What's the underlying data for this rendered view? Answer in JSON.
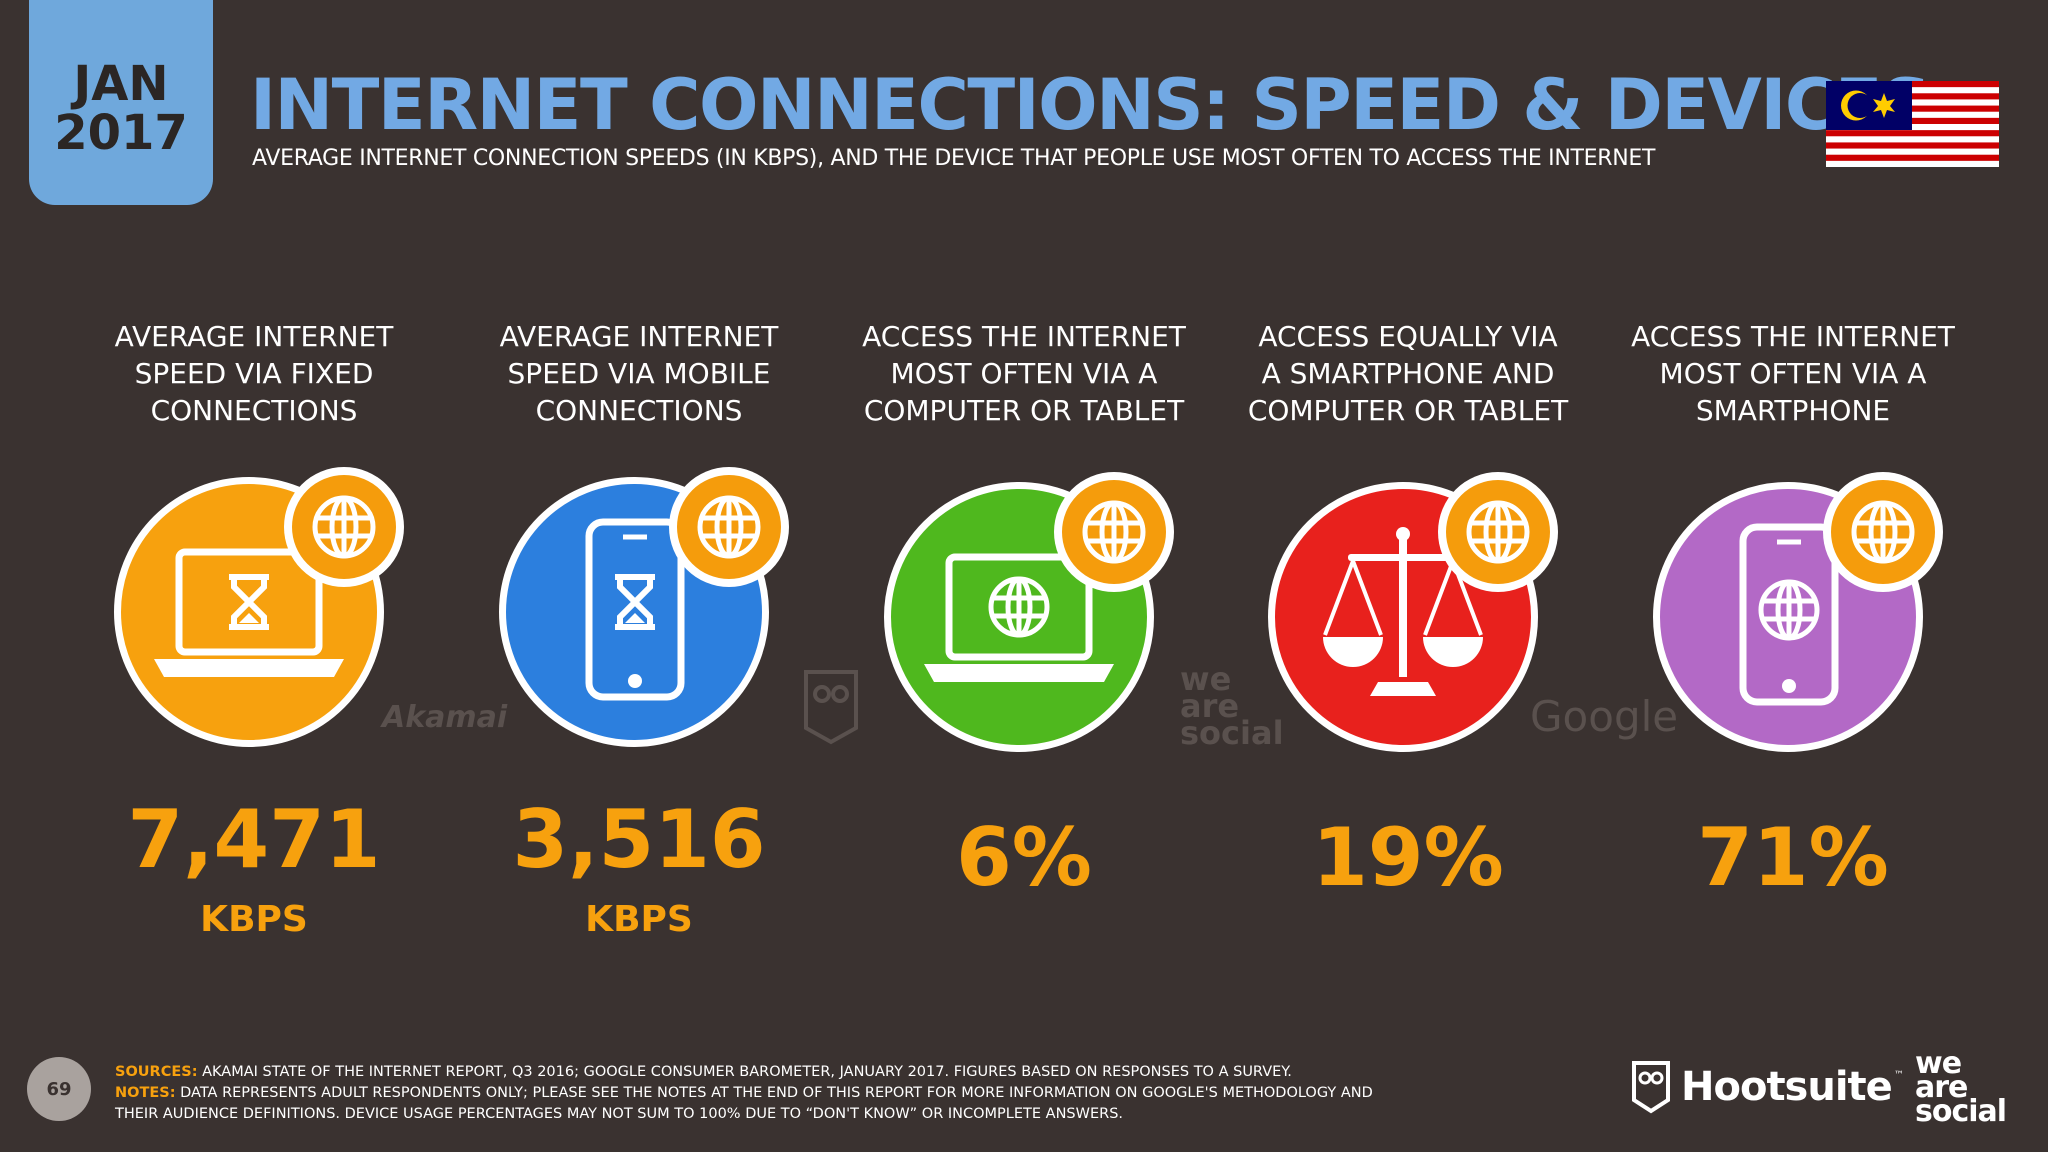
{
  "header": {
    "month": "JAN",
    "year": "2017",
    "title": "INTERNET CONNECTIONS: SPEED & DEVICES",
    "subtitle": "AVERAGE INTERNET CONNECTION SPEEDS (IN KBPS), AND THE DEVICE THAT PEOPLE USE MOST OFTEN TO ACCESS THE INTERNET"
  },
  "flag": {
    "icon": "malaysia-flag-icon"
  },
  "stats": [
    {
      "label": "AVERAGE INTERNET\nSPEED VIA FIXED\nCONNECTIONS",
      "value": "7,471",
      "unit": "KBPS",
      "color": "#f7a10e",
      "icon": "laptop-hourglass-icon"
    },
    {
      "label": "AVERAGE INTERNET\nSPEED VIA MOBILE\nCONNECTIONS",
      "value": "3,516",
      "unit": "KBPS",
      "color": "#2c7fde",
      "icon": "smartphone-hourglass-icon"
    },
    {
      "label": "ACCESS THE INTERNET\nMOST OFTEN VIA A\nCOMPUTER OR TABLET",
      "value": "6%",
      "unit": "",
      "color": "#4fb81e",
      "icon": "laptop-globe-icon"
    },
    {
      "label": "ACCESS EQUALLY VIA\nA SMARTPHONE AND\nCOMPUTER OR TABLET",
      "value": "19%",
      "unit": "",
      "color": "#e8211d",
      "icon": "scales-icon"
    },
    {
      "label": "ACCESS THE INTERNET\nMOST OFTEN VIA A\nSMARTPHONE",
      "value": "71%",
      "unit": "",
      "color": "#b369c6",
      "icon": "smartphone-globe-icon"
    }
  ],
  "watermarks": {
    "akamai": "Akamai",
    "we": "we",
    "are": "are",
    "social": "social",
    "google": "Google"
  },
  "footer": {
    "page": "69",
    "sources_key": "SOURCES:",
    "sources": " AKAMAI STATE OF THE INTERNET REPORT, Q3 2016; GOOGLE CONSUMER BAROMETER, JANUARY 2017. FIGURES BASED ON RESPONSES TO A SURVEY.",
    "notes_key": "NOTES:",
    "notes": " DATA REPRESENTS ADULT RESPONDENTS ONLY; PLEASE SEE THE NOTES AT THE END OF THIS REPORT FOR MORE INFORMATION ON GOOGLE'S METHODOLOGY AND THEIR AUDIENCE DEFINITIONS. DEVICE USAGE PERCENTAGES MAY NOT SUM TO 100% DUE TO “DON'T KNOW” OR INCOMPLETE ANSWERS.",
    "hootsuite": "Hootsuite",
    "tm": "™",
    "we": "we",
    "are": "are",
    "social": "social"
  }
}
